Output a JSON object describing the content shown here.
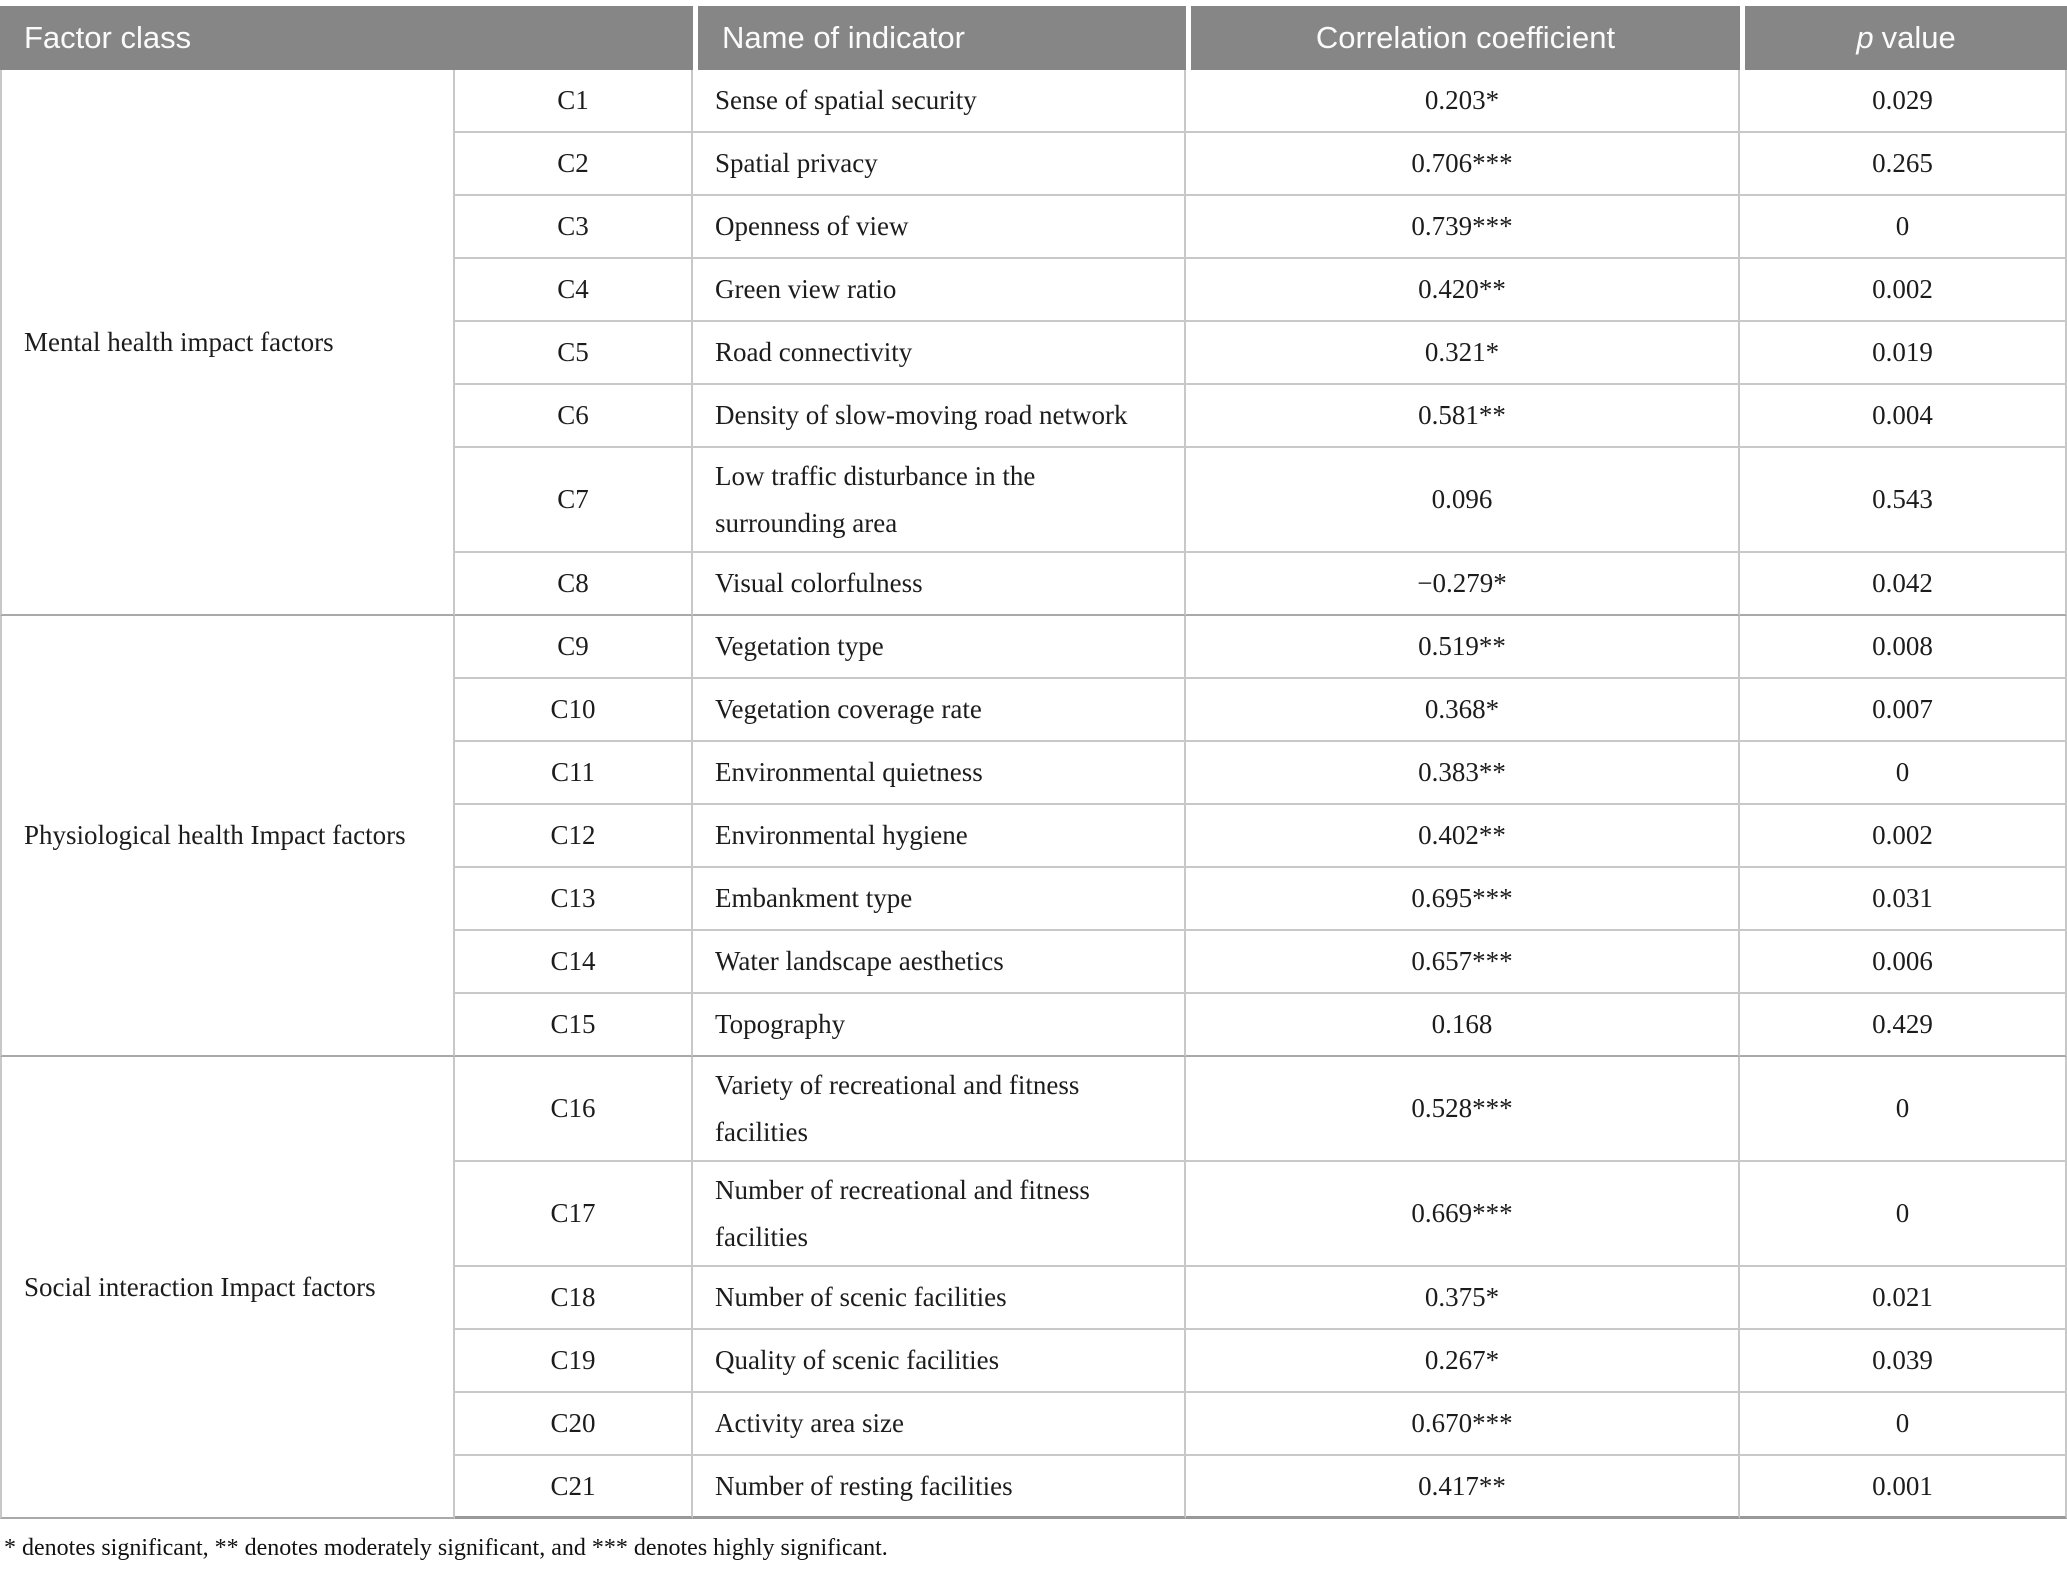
{
  "header": {
    "factor_class": "Factor class",
    "name_of_indicator": "Name of indicator",
    "correlation_coefficient": "Correlation coefficient",
    "p_italic": "p",
    "p_rest": "value"
  },
  "groups": [
    {
      "label": "Mental health impact factors",
      "span": 8
    },
    {
      "label": "Physiological health Impact factors",
      "span": 7
    },
    {
      "label": "Social interaction Impact factors",
      "span": 6
    }
  ],
  "rows": [
    {
      "code": "C1",
      "name": "Sense of spatial security",
      "corr": "0.203*",
      "p": "0.029"
    },
    {
      "code": "C2",
      "name": "Spatial privacy",
      "corr": "0.706***",
      "p": "0.265"
    },
    {
      "code": "C3",
      "name": "Openness of view",
      "corr": "0.739***",
      "p": "0"
    },
    {
      "code": "C4",
      "name": "Green view ratio",
      "corr": "0.420**",
      "p": "0.002"
    },
    {
      "code": "C5",
      "name": "Road connectivity",
      "corr": "0.321*",
      "p": "0.019"
    },
    {
      "code": "C6",
      "name": "Density of slow-moving road network",
      "corr": "0.581**",
      "p": "0.004"
    },
    {
      "code": "C7",
      "name": "Low traffic disturbance in the surrounding area",
      "corr": "0.096",
      "p": "0.543"
    },
    {
      "code": "C8",
      "name": "Visual colorfulness",
      "corr": "−0.279*",
      "p": "0.042"
    },
    {
      "code": "C9",
      "name": "Vegetation type",
      "corr": "0.519**",
      "p": "0.008"
    },
    {
      "code": "C10",
      "name": "Vegetation coverage rate",
      "corr": "0.368*",
      "p": "0.007"
    },
    {
      "code": "C11",
      "name": "Environmental quietness",
      "corr": "0.383**",
      "p": "0"
    },
    {
      "code": "C12",
      "name": "Environmental hygiene",
      "corr": "0.402**",
      "p": "0.002"
    },
    {
      "code": "C13",
      "name": "Embankment type",
      "corr": "0.695***",
      "p": "0.031"
    },
    {
      "code": "C14",
      "name": "Water landscape aesthetics",
      "corr": "0.657***",
      "p": "0.006"
    },
    {
      "code": "C15",
      "name": "Topography",
      "corr": "0.168",
      "p": "0.429"
    },
    {
      "code": "C16",
      "name": "Variety of recreational and fitness facilities",
      "corr": "0.528***",
      "p": "0"
    },
    {
      "code": "C17",
      "name": "Number of recreational and fitness facilities",
      "corr": "0.669***",
      "p": "0"
    },
    {
      "code": "C18",
      "name": "Number of scenic facilities",
      "corr": "0.375*",
      "p": "0.021"
    },
    {
      "code": "C19",
      "name": "Quality of scenic facilities",
      "corr": "0.267*",
      "p": "0.039"
    },
    {
      "code": "C20",
      "name": "Activity area size",
      "corr": "0.670***",
      "p": "0"
    },
    {
      "code": "C21",
      "name": "Number of resting facilities",
      "corr": "0.417**",
      "p": "0.001"
    }
  ],
  "footnote": "* denotes significant, ** denotes moderately significant, and *** denotes highly significant.",
  "colors": {
    "header_bg": "#868686",
    "header_text": "#fbfbfb",
    "row_border": "#c8c8c8",
    "group_border": "#a9a9a9",
    "bottom_border": "#999999"
  }
}
